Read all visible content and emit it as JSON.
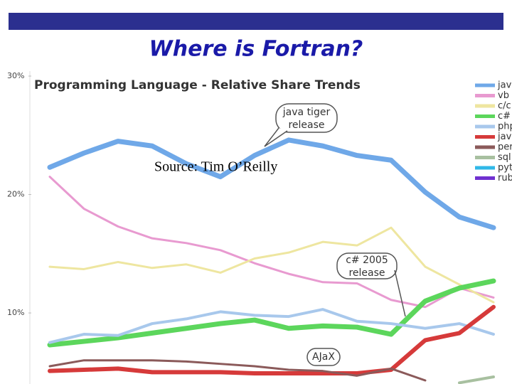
{
  "slide_title": "Where is Fortran?",
  "source": "Source: Tim O’Reilly",
  "chart_data": {
    "type": "line",
    "title": "Programming Language - Relative Share Trends",
    "categories": [
      null,
      null,
      null,
      null,
      null,
      null,
      null,
      null,
      null,
      null,
      null,
      null,
      null,
      null
    ],
    "ylim": [
      4,
      30
    ],
    "yticks": [
      {
        "value": 10,
        "label": "10%"
      },
      {
        "value": 20,
        "label": "20%"
      },
      {
        "value": 30,
        "label": "30%"
      }
    ],
    "series": [
      {
        "name": "jav",
        "color": "#6fa8e8",
        "width": 7,
        "values": [
          22.3,
          23.5,
          24.5,
          24.1,
          22.6,
          21.5,
          23.3,
          24.6,
          24.1,
          23.3,
          22.9,
          20.2,
          18.1,
          17.2
        ]
      },
      {
        "name": "vb",
        "color": "#e89ad0",
        "width": 3,
        "values": [
          21.5,
          18.8,
          17.3,
          16.3,
          15.9,
          15.3,
          14.2,
          13.3,
          12.6,
          12.5,
          11.1,
          10.5,
          12.1,
          11.3
        ]
      },
      {
        "name": "c/c",
        "color": "#eee6a0",
        "width": 3,
        "values": [
          13.9,
          13.7,
          14.3,
          13.8,
          14.1,
          13.4,
          14.6,
          15.1,
          16.0,
          15.7,
          17.2,
          13.9,
          12.4,
          10.9
        ]
      },
      {
        "name": "c#",
        "color": "#5cd65c",
        "width": 7,
        "values": [
          7.3,
          7.6,
          7.9,
          8.3,
          8.7,
          9.1,
          9.4,
          8.7,
          8.9,
          8.8,
          8.2,
          11.0,
          12.1,
          12.7
        ]
      },
      {
        "name": "php",
        "color": "#a8c8ec",
        "width": 4,
        "values": [
          7.5,
          8.2,
          8.1,
          9.1,
          9.5,
          10.1,
          9.8,
          9.7,
          10.3,
          9.3,
          9.1,
          8.7,
          9.1,
          8.2
        ]
      },
      {
        "name": "jav",
        "color": "#d63a3a",
        "width": 6,
        "values": [
          5.1,
          5.2,
          5.3,
          5.0,
          5.0,
          5.0,
          4.9,
          4.9,
          4.9,
          4.9,
          5.2,
          7.7,
          8.3,
          10.5
        ]
      },
      {
        "name": "per",
        "color": "#8b5a5a",
        "width": 3,
        "values": [
          5.5,
          6.0,
          6.0,
          6.0,
          5.9,
          5.7,
          5.5,
          5.2,
          5.1,
          4.7,
          5.3,
          4.3,
          null,
          null
        ]
      },
      {
        "name": "sql",
        "color": "#a8c0a0",
        "width": 4,
        "values": [
          null,
          null,
          null,
          null,
          null,
          null,
          null,
          null,
          null,
          null,
          null,
          null,
          4.1,
          4.6
        ]
      },
      {
        "name": "pyt",
        "color": "#30b8e8",
        "width": 4,
        "values": [
          null,
          null,
          null,
          null,
          null,
          null,
          null,
          null,
          null,
          null,
          null,
          null,
          null,
          null
        ]
      },
      {
        "name": "rub",
        "color": "#7030d0",
        "width": 4,
        "values": [
          null,
          null,
          null,
          null,
          null,
          null,
          null,
          null,
          null,
          null,
          null,
          null,
          null,
          null
        ]
      }
    ],
    "annotations": [
      {
        "text": [
          "java tiger",
          "release"
        ]
      },
      {
        "text": [
          "c# 2005",
          "release"
        ]
      },
      {
        "text": [
          "AJaX"
        ]
      }
    ]
  }
}
